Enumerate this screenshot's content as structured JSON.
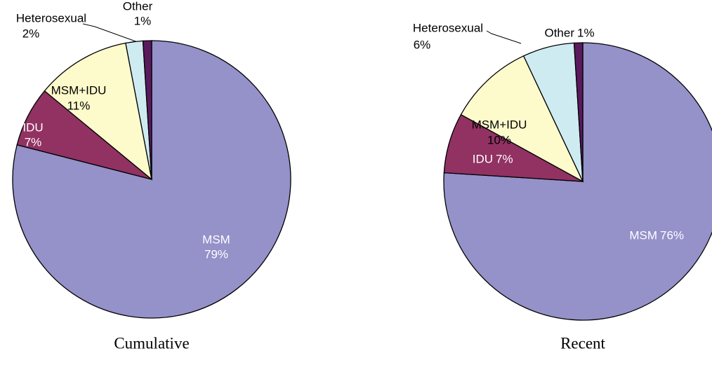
{
  "chart_data": [
    {
      "type": "pie",
      "title": "Cumulative",
      "categories": [
        "MSM",
        "IDU",
        "MSM+IDU",
        "Heterosexual",
        "Other"
      ],
      "values": [
        79,
        7,
        11,
        2,
        1
      ],
      "value_labels": [
        "79%",
        "7%",
        "11%",
        "2%",
        "1%"
      ],
      "colors": [
        "#9591c9",
        "#913263",
        "#fdfbcc",
        "#cfebf2",
        "#5a1a5e"
      ]
    },
    {
      "type": "pie",
      "title": "Recent",
      "categories": [
        "MSM",
        "IDU",
        "MSM+IDU",
        "Heterosexual",
        "Other"
      ],
      "values": [
        76,
        7,
        10,
        6,
        1
      ],
      "value_labels": [
        "76%",
        "7%",
        "10%",
        "6%",
        "1%"
      ],
      "colors": [
        "#9591c9",
        "#913263",
        "#fdfbcc",
        "#cfebf2",
        "#5a1a5e"
      ]
    }
  ]
}
